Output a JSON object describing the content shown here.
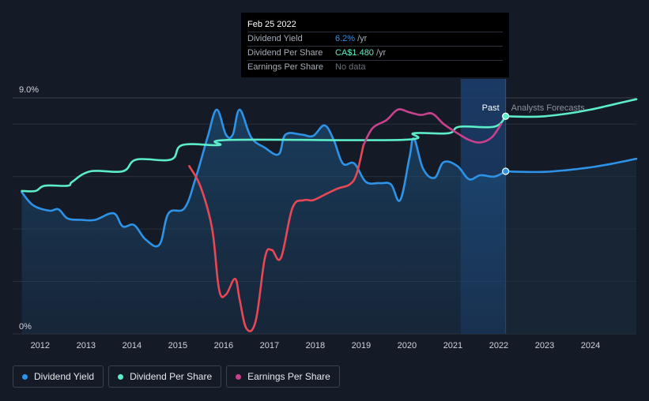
{
  "chart_data": {
    "type": "line",
    "x_ticks": [
      "2012",
      "2013",
      "2014",
      "2015",
      "2016",
      "2017",
      "2018",
      "2019",
      "2020",
      "2021",
      "2022",
      "2023",
      "2024"
    ],
    "x_range": [
      2011.4,
      2025.0
    ],
    "ylim": [
      0,
      9.0
    ],
    "y_tick_labels": [
      {
        "value": 9.0,
        "label": "9.0%"
      },
      {
        "value": 0,
        "label": "0%"
      }
    ],
    "grid": true,
    "past_label": "Past",
    "forecast_label": "Analysts Forecasts",
    "past_end": 2022.15,
    "shaded_start": 2021.17,
    "series": [
      {
        "name": "Dividend Yield",
        "color": "#2e93e6",
        "area": true,
        "points": [
          [
            2011.6,
            5.4
          ],
          [
            2011.85,
            4.9
          ],
          [
            2012.2,
            4.7
          ],
          [
            2012.4,
            4.75
          ],
          [
            2012.6,
            4.4
          ],
          [
            2012.9,
            4.35
          ],
          [
            2013.2,
            4.35
          ],
          [
            2013.6,
            4.6
          ],
          [
            2013.8,
            4.1
          ],
          [
            2014.05,
            4.15
          ],
          [
            2014.3,
            3.6
          ],
          [
            2014.6,
            3.4
          ],
          [
            2014.8,
            4.6
          ],
          [
            2015.15,
            4.8
          ],
          [
            2015.4,
            6.0
          ],
          [
            2015.65,
            7.5
          ],
          [
            2015.85,
            8.55
          ],
          [
            2016.05,
            7.6
          ],
          [
            2016.2,
            7.6
          ],
          [
            2016.35,
            8.55
          ],
          [
            2016.6,
            7.5
          ],
          [
            2016.9,
            7.1
          ],
          [
            2017.2,
            6.85
          ],
          [
            2017.35,
            7.6
          ],
          [
            2017.7,
            7.6
          ],
          [
            2017.95,
            7.55
          ],
          [
            2018.2,
            7.95
          ],
          [
            2018.4,
            7.4
          ],
          [
            2018.6,
            6.5
          ],
          [
            2018.85,
            6.5
          ],
          [
            2019.1,
            5.8
          ],
          [
            2019.4,
            5.75
          ],
          [
            2019.65,
            5.7
          ],
          [
            2019.85,
            5.1
          ],
          [
            2020.05,
            6.7
          ],
          [
            2020.15,
            7.45
          ],
          [
            2020.35,
            6.3
          ],
          [
            2020.6,
            5.95
          ],
          [
            2020.8,
            6.55
          ],
          [
            2021.1,
            6.4
          ],
          [
            2021.35,
            5.9
          ],
          [
            2021.6,
            6.05
          ],
          [
            2021.9,
            6.0
          ],
          [
            2022.15,
            6.2
          ]
        ]
      },
      {
        "name": "Dividend Yield Forecast",
        "color": "#2e93e6",
        "points": [
          [
            2022.15,
            6.2
          ],
          [
            2022.5,
            6.18
          ],
          [
            2023.0,
            6.18
          ],
          [
            2023.5,
            6.25
          ],
          [
            2024.0,
            6.35
          ],
          [
            2024.5,
            6.5
          ],
          [
            2025.0,
            6.68
          ]
        ]
      },
      {
        "name": "Dividend Per Share",
        "color": "#5cedc8",
        "points": [
          [
            2011.6,
            5.45
          ],
          [
            2011.9,
            5.45
          ],
          [
            2012.1,
            5.65
          ],
          [
            2012.6,
            5.65
          ],
          [
            2012.7,
            5.8
          ],
          [
            2013.1,
            6.2
          ],
          [
            2013.8,
            6.2
          ],
          [
            2014.1,
            6.65
          ],
          [
            2014.85,
            6.65
          ],
          [
            2015.1,
            7.2
          ],
          [
            2015.9,
            7.2
          ],
          [
            2016.15,
            7.4
          ],
          [
            2019.9,
            7.4
          ],
          [
            2020.15,
            7.65
          ],
          [
            2020.9,
            7.65
          ],
          [
            2021.15,
            7.9
          ],
          [
            2021.9,
            7.9
          ],
          [
            2022.15,
            8.3
          ]
        ]
      },
      {
        "name": "Dividend Per Share Forecast",
        "color": "#5cedc8",
        "points": [
          [
            2022.15,
            8.3
          ],
          [
            2022.6,
            8.28
          ],
          [
            2023.0,
            8.3
          ],
          [
            2023.5,
            8.4
          ],
          [
            2024.0,
            8.55
          ],
          [
            2024.5,
            8.75
          ],
          [
            2025.0,
            8.95
          ]
        ]
      },
      {
        "name": "Earnings Per Share",
        "color": "#e84855",
        "points": [
          [
            2015.25,
            6.4
          ],
          [
            2015.5,
            5.6
          ],
          [
            2015.75,
            4.0
          ],
          [
            2015.9,
            1.7
          ],
          [
            2016.05,
            1.5
          ],
          [
            2016.25,
            2.1
          ],
          [
            2016.35,
            1.3
          ],
          [
            2016.5,
            0.2
          ],
          [
            2016.7,
            0.5
          ],
          [
            2016.9,
            2.9
          ],
          [
            2017.05,
            3.2
          ],
          [
            2017.25,
            2.9
          ],
          [
            2017.5,
            4.8
          ],
          [
            2017.75,
            5.1
          ],
          [
            2017.95,
            5.1
          ],
          [
            2018.25,
            5.35
          ],
          [
            2018.5,
            5.55
          ],
          [
            2018.75,
            5.7
          ],
          [
            2018.9,
            6.1
          ],
          [
            2019.05,
            7.2
          ]
        ]
      },
      {
        "name": "Earnings Per Share (trend)",
        "color": "#c7418c",
        "points": [
          [
            2019.05,
            7.2
          ],
          [
            2019.25,
            7.85
          ],
          [
            2019.55,
            8.15
          ],
          [
            2019.8,
            8.55
          ],
          [
            2020.05,
            8.45
          ],
          [
            2020.3,
            8.35
          ],
          [
            2020.55,
            8.4
          ],
          [
            2020.8,
            8.0
          ],
          [
            2021.1,
            7.65
          ],
          [
            2021.35,
            7.4
          ],
          [
            2021.6,
            7.3
          ],
          [
            2021.85,
            7.5
          ],
          [
            2022.05,
            8.0
          ]
        ]
      }
    ],
    "markers": [
      {
        "x": 2022.15,
        "y": 8.3,
        "color": "#5cedc8"
      },
      {
        "x": 2022.15,
        "y": 6.2,
        "color": "#2e93e6"
      }
    ]
  },
  "tooltip": {
    "date": "Feb 25 2022",
    "rows": [
      {
        "label": "Dividend Yield",
        "value": "6.2%",
        "unit": "/yr",
        "color": "#2e93e6"
      },
      {
        "label": "Dividend Per Share",
        "value": "CA$1.480",
        "unit": "/yr",
        "color": "#5cedc8"
      },
      {
        "label": "Earnings Per Share",
        "value": "No data",
        "unit": "",
        "color": "#6b717b"
      }
    ]
  },
  "legend": [
    {
      "label": "Dividend Yield",
      "color": "#2e93e6"
    },
    {
      "label": "Dividend Per Share",
      "color": "#5cedc8"
    },
    {
      "label": "Earnings Per Share",
      "color": "#c7418c"
    }
  ]
}
